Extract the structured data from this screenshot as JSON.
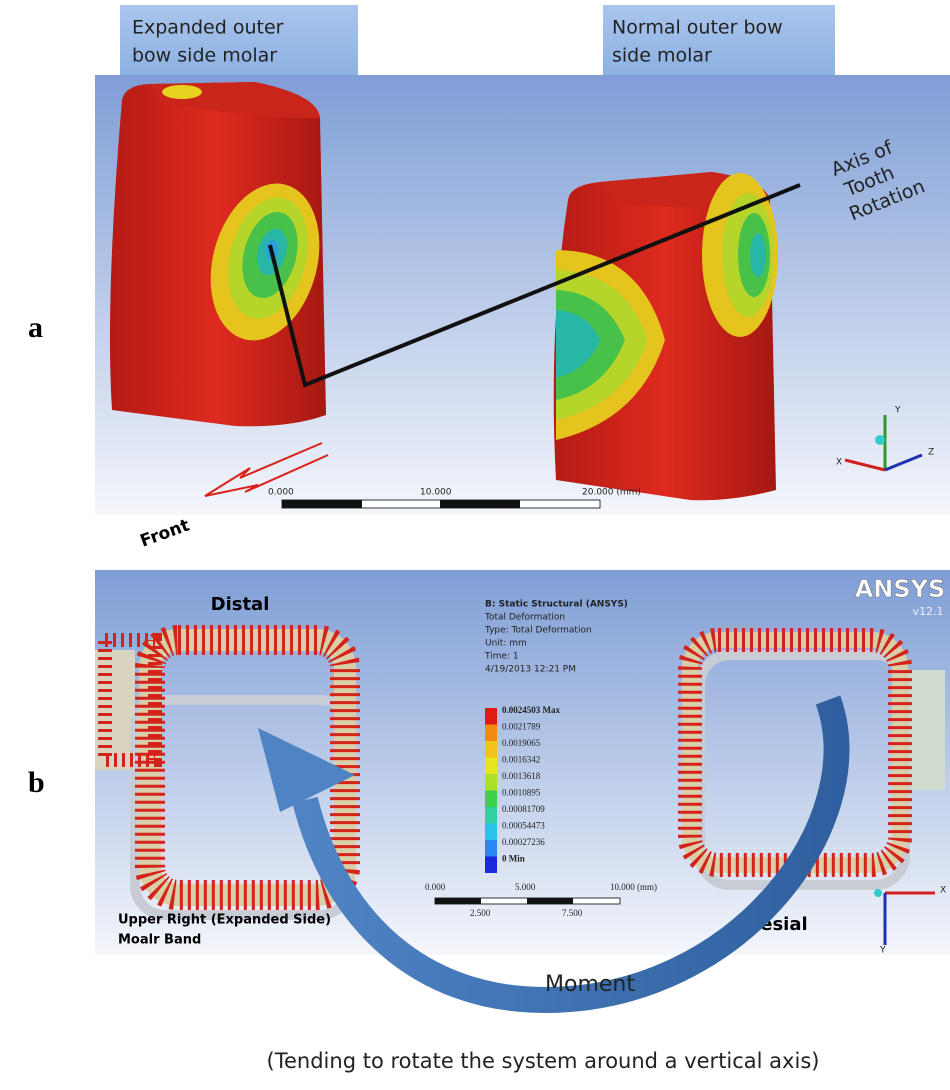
{
  "panel_a": {
    "label": "a",
    "header_left": [
      "Expanded outer",
      "bow side molar"
    ],
    "header_right": [
      "Normal outer bow",
      "side molar"
    ],
    "axis_label": [
      "Axis of",
      "Tooth",
      "Rotation"
    ],
    "front": "Front",
    "scale": [
      "0.000",
      "10.000",
      "20.000 (mm)"
    ],
    "triad": [
      "Y",
      "Z",
      "X"
    ]
  },
  "panel_b": {
    "label": "b",
    "distal": "Distal",
    "brand": "ANSYS",
    "version": "v12.1",
    "info": [
      "B: Static Structural (ANSYS)",
      "Total Deformation",
      "Type: Total Deformation",
      "Unit: mm",
      "Time: 1",
      "4/19/2013 12:21 PM"
    ],
    "legend": [
      "0.0024503 Max",
      "0.0021789",
      "0.0019065",
      "0.0016342",
      "0.0013618",
      "0.0010895",
      "0.00081709",
      "0.00054473",
      "0.00027236",
      "0 Min"
    ],
    "scale_top": [
      "0.000",
      "5.000",
      "10.000 (mm)"
    ],
    "scale_bottom": [
      "2.500",
      "7.500"
    ],
    "caption": [
      "Upper Right (Expanded Side)",
      "Moalr Band"
    ],
    "mesial": "Mesial",
    "triad": [
      "X",
      "Y"
    ]
  },
  "moment": "Moment",
  "note": "(Tending to rotate the system around a vertical axis)"
}
